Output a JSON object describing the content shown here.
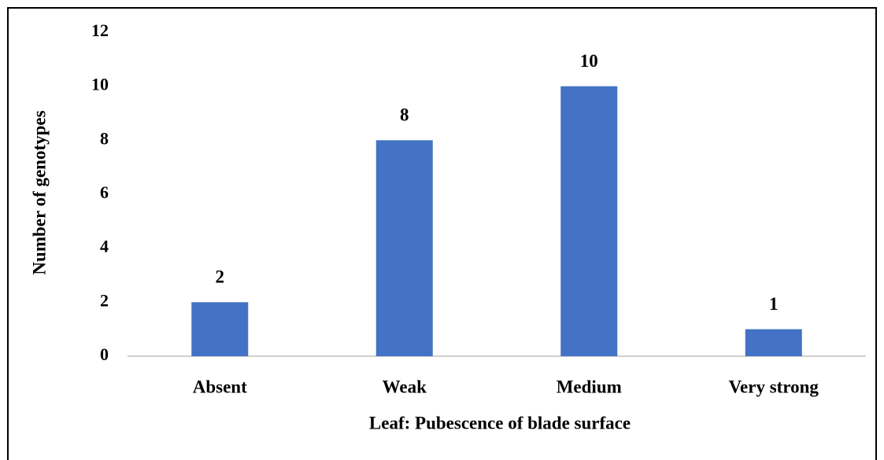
{
  "chart_data": {
    "type": "bar",
    "x_label": "Leaf: Pubescence of blade surface",
    "y_label": "Number of genotypes",
    "categories": [
      "Absent",
      "Weak",
      "Medium",
      "Very strong"
    ],
    "values": [
      2,
      8,
      10,
      1
    ],
    "color": "#4472c4",
    "ylim": [
      0,
      12
    ],
    "yticks": [
      0,
      2,
      4,
      6,
      8,
      10,
      12
    ],
    "grid": false
  }
}
